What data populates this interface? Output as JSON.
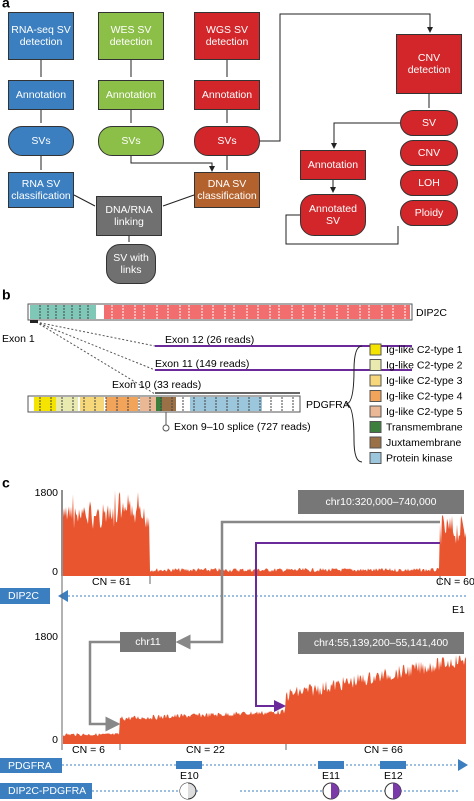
{
  "panel_labels": [
    "a",
    "b",
    "c"
  ],
  "flow_nodes": [
    "RNA-seq SV detection",
    "Annotation",
    "SVs",
    "RNA SV classification",
    "WES SV detection",
    "Annotation",
    "SVs",
    "WGS SV detection",
    "Annotation",
    "SVs",
    "DNA SV classification",
    "DNA/RNA linking",
    "SV with links",
    "CNV detection",
    "SV",
    "CNV",
    "LOH",
    "Ploidy",
    "Annotation",
    "Annotated SV"
  ],
  "genes": {
    "dip2c": "DIP2C",
    "pdgfra": "PDGFRA",
    "exon1": "Exon 1",
    "junctions": [
      "Exon 12 (26 reads)",
      "Exon 11 (149 reads)",
      "Exon 10 (33 reads)"
    ],
    "splice": "Exon 9–10 splice (727 reads)"
  },
  "domains": [
    {
      "name": "Ig-like C2-type 1",
      "color": "#f5e400"
    },
    {
      "name": "Ig-like C2-type 2",
      "color": "#e8eab0"
    },
    {
      "name": "Ig-like C2-type 3",
      "color": "#f6d77a"
    },
    {
      "name": "Ig-like C2-type 4",
      "color": "#f2a45a"
    },
    {
      "name": "Ig-like C2-type 5",
      "color": "#eab894"
    },
    {
      "name": "Transmembrane",
      "color": "#3d7f3c"
    },
    {
      "name": "Juxtamembrane",
      "color": "#9a7047"
    },
    {
      "name": "Protein kinase",
      "color": "#9cc6dc"
    }
  ],
  "tracks": {
    "ymax": 1800,
    "ymin": 0,
    "regions": [
      "chr10:320,000–740,000",
      "chr11",
      "chr4:55,139,200–55,141,400"
    ],
    "cn_top": [
      "CN = 61",
      "CN = 60"
    ],
    "cn_bottom": [
      "CN = 6",
      "CN = 22",
      "CN = 66"
    ],
    "genes": [
      "DIP2C",
      "PDGFRA",
      "DIP2C-PDGFRA"
    ],
    "exons": [
      "E1",
      "E10",
      "E11",
      "E12"
    ]
  }
}
